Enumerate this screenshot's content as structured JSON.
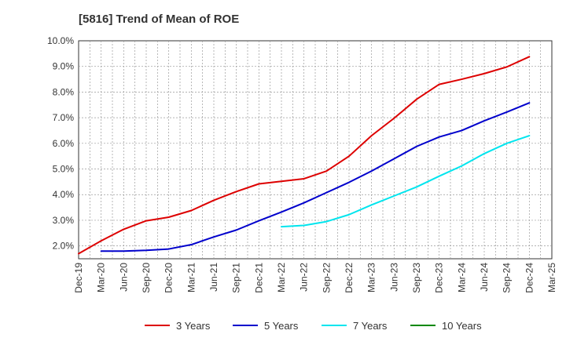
{
  "chart_data": {
    "type": "line",
    "title": "[5816]  Trend of Mean of ROE",
    "xlabel": "",
    "ylabel": "",
    "x": [
      "Dec-19",
      "Mar-20",
      "Jun-20",
      "Sep-20",
      "Dec-20",
      "Mar-21",
      "Jun-21",
      "Sep-21",
      "Dec-21",
      "Mar-22",
      "Jun-22",
      "Sep-22",
      "Dec-22",
      "Mar-23",
      "Jun-23",
      "Sep-23",
      "Dec-23",
      "Mar-24",
      "Jun-24",
      "Sep-24",
      "Dec-24",
      "Mar-25"
    ],
    "yticks": [
      "2.0%",
      "3.0%",
      "4.0%",
      "5.0%",
      "6.0%",
      "7.0%",
      "8.0%",
      "9.0%",
      "10.0%"
    ],
    "ylim": [
      1.5,
      10.0
    ],
    "grid": true,
    "legend_position": "bottom",
    "series": [
      {
        "name": "3 Years",
        "color": "#dd0000",
        "values": [
          1.7,
          2.2,
          2.65,
          2.98,
          3.12,
          3.38,
          3.78,
          4.12,
          4.42,
          4.52,
          4.62,
          4.92,
          5.5,
          6.3,
          6.98,
          7.72,
          8.3,
          8.5,
          8.72,
          8.98,
          9.38,
          null
        ]
      },
      {
        "name": "5 Years",
        "color": "#0000cc",
        "values": [
          null,
          1.8,
          1.8,
          1.83,
          1.88,
          2.05,
          2.35,
          2.62,
          2.98,
          3.32,
          3.68,
          4.08,
          4.48,
          4.92,
          5.4,
          5.88,
          6.25,
          6.5,
          6.88,
          7.22,
          7.58,
          null
        ]
      },
      {
        "name": "7 Years",
        "color": "#00e5ee",
        "values": [
          null,
          null,
          null,
          null,
          null,
          null,
          null,
          null,
          null,
          2.75,
          2.8,
          2.95,
          3.22,
          3.6,
          3.95,
          4.3,
          4.72,
          5.12,
          5.6,
          6.0,
          6.3,
          null
        ]
      },
      {
        "name": "10 Years",
        "color": "#008800",
        "values": [
          null,
          null,
          null,
          null,
          null,
          null,
          null,
          null,
          null,
          null,
          null,
          null,
          null,
          null,
          null,
          null,
          null,
          null,
          null,
          null,
          null,
          null
        ]
      }
    ]
  }
}
